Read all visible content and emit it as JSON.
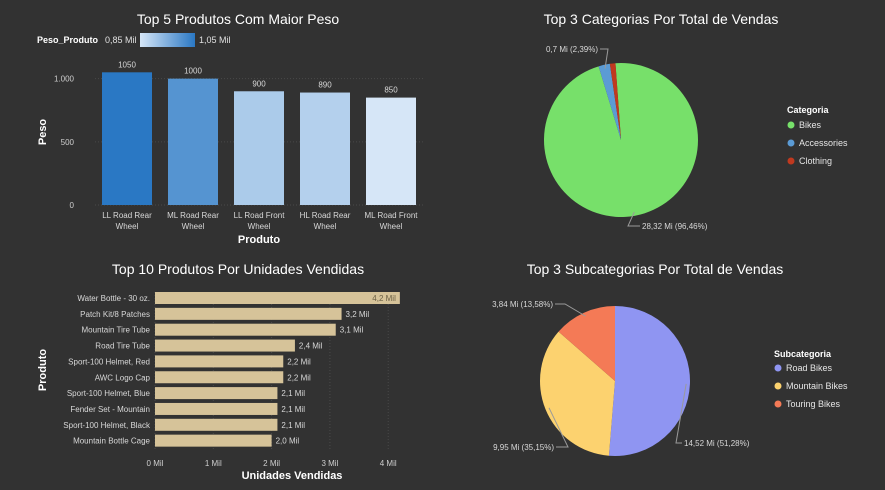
{
  "chart_data": [
    {
      "type": "bar",
      "title": "Top 5 Produtos Com Maior Peso",
      "xlabel": "Produto",
      "ylabel": "Peso",
      "color_legend": {
        "label": "Peso_Produto",
        "min_label": "0,85 Mil",
        "max_label": "1,05 Mil",
        "min": 850,
        "max": 1050,
        "color_min": "#d6e6f7",
        "color_max": "#2a78c4"
      },
      "categories": [
        [
          "LL Road Rear",
          "Wheel"
        ],
        [
          "ML Road Rear",
          "Wheel"
        ],
        [
          "LL Road Front",
          "Wheel"
        ],
        [
          "HL Road Rear",
          "Wheel"
        ],
        [
          "ML Road Front",
          "Wheel"
        ]
      ],
      "values": [
        1050,
        1000,
        900,
        890,
        850
      ],
      "value_labels": [
        "1050",
        "1000",
        "900",
        "890",
        "850"
      ],
      "yticks": [
        0,
        500,
        1000
      ],
      "ytick_labels": [
        "0",
        "500",
        "1.000"
      ],
      "ylim": [
        0,
        1100
      ],
      "grid": true
    },
    {
      "type": "pie",
      "title": "Top 3 Categorias Por Total de Vendas",
      "legend_title": "Categoria",
      "legend_position": "right",
      "slices": [
        {
          "name": "Bikes",
          "value": 28.32,
          "percent": 96.46,
          "label": "28,32 Mi (96,46%)",
          "color": "#77e06a"
        },
        {
          "name": "Accessories",
          "value": 0.7,
          "percent": 2.39,
          "label": "0,7 Mi (2,39%)",
          "color": "#5b9bd5"
        },
        {
          "name": "Clothing",
          "value": 0.34,
          "percent": 1.15,
          "label": "",
          "color": "#c0391f"
        }
      ]
    },
    {
      "type": "bar",
      "orientation": "horizontal",
      "title": "Top 10 Produtos Por Unidades Vendidas",
      "xlabel": "Unidades Vendidas",
      "ylabel": "Produto",
      "bar_color": "#d6c399",
      "categories": [
        "Water Bottle - 30 oz.",
        "Patch Kit/8 Patches",
        "Mountain Tire Tube",
        "Road Tire Tube",
        "Sport-100 Helmet, Red",
        "AWC Logo Cap",
        "Sport-100 Helmet, Blue",
        "Fender Set - Mountain",
        "Sport-100 Helmet, Black",
        "Mountain Bottle Cage"
      ],
      "values": [
        4.2,
        3.2,
        3.1,
        2.4,
        2.2,
        2.2,
        2.1,
        2.1,
        2.1,
        2.0
      ],
      "value_labels": [
        "4,2 Mil",
        "3,2 Mil",
        "3,1 Mil",
        "2,4 Mil",
        "2,2 Mil",
        "2,2 Mil",
        "2,1 Mil",
        "2,1 Mil",
        "2,1 Mil",
        "2,0 Mil"
      ],
      "xticks": [
        0,
        1,
        2,
        3,
        4
      ],
      "xtick_labels": [
        "0 Mil",
        "1 Mil",
        "2 Mil",
        "3 Mil",
        "4 Mil"
      ],
      "xlim": [
        0,
        4.3
      ]
    },
    {
      "type": "pie",
      "title": "Top 3 Subcategorias Por Total de Vendas",
      "legend_title": "Subcategoria",
      "legend_position": "right",
      "slices": [
        {
          "name": "Road Bikes",
          "value": 14.52,
          "percent": 51.28,
          "label": "14,52 Mi (51,28%)",
          "color": "#8f95f2"
        },
        {
          "name": "Mountain Bikes",
          "value": 9.95,
          "percent": 35.15,
          "label": "9,95 Mi (35,15%)",
          "color": "#fcd26f"
        },
        {
          "name": "Touring Bikes",
          "value": 3.84,
          "percent": 13.58,
          "label": "3,84 Mi (13,58%)",
          "color": "#f47a56"
        }
      ]
    }
  ]
}
